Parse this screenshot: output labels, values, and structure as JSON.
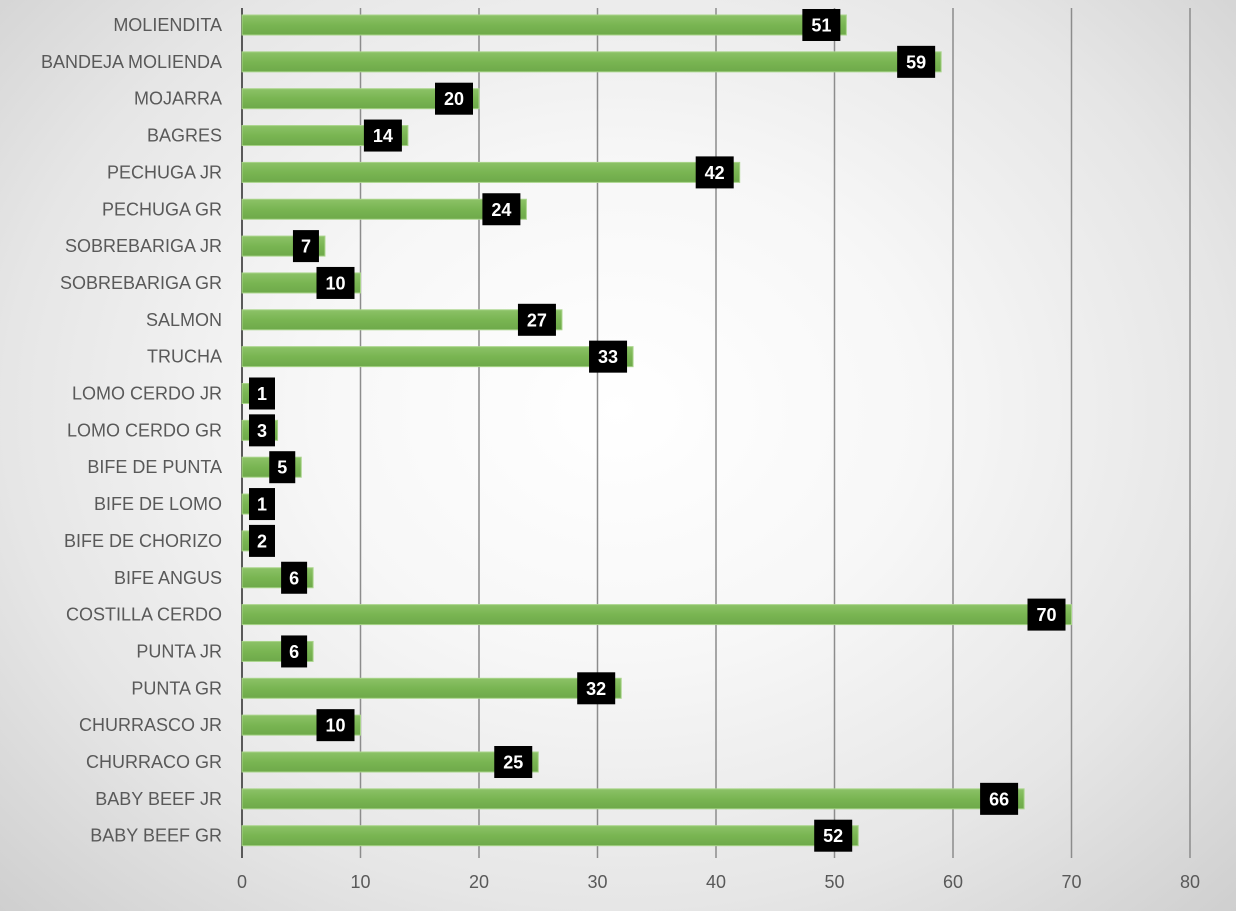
{
  "chart_data": {
    "type": "bar",
    "orientation": "horizontal",
    "categories": [
      "MOLIENDITA",
      "BANDEJA MOLIENDA",
      "MOJARRA",
      "BAGRES",
      "PECHUGA JR",
      "PECHUGA GR",
      "SOBREBARIGA JR",
      "SOBREBARIGA GR",
      "SALMON",
      "TRUCHA",
      "LOMO CERDO JR",
      "LOMO CERDO GR",
      "BIFE DE PUNTA",
      "BIFE DE LOMO",
      "BIFE DE CHORIZO",
      "BIFE ANGUS",
      "COSTILLA CERDO",
      "PUNTA JR",
      "PUNTA GR",
      "CHURRASCO JR",
      "CHURRACO GR",
      "BABY BEEF JR",
      "BABY BEEF GR"
    ],
    "values": [
      51,
      59,
      20,
      14,
      42,
      24,
      7,
      10,
      27,
      33,
      1,
      3,
      5,
      1,
      2,
      6,
      70,
      6,
      32,
      10,
      25,
      66,
      52
    ],
    "xlim": [
      0,
      80
    ],
    "xticks": [
      0,
      10,
      20,
      30,
      40,
      50,
      60,
      70,
      80
    ],
    "gridlines": "vertical",
    "legend": "none",
    "data_labels": true,
    "colors": {
      "bar": "#79b552",
      "bar_highlight": "#a9d48a",
      "label_box": "#000000",
      "label_text": "#ffffff",
      "grid": "#8c8c8c",
      "text": "#595959"
    }
  }
}
